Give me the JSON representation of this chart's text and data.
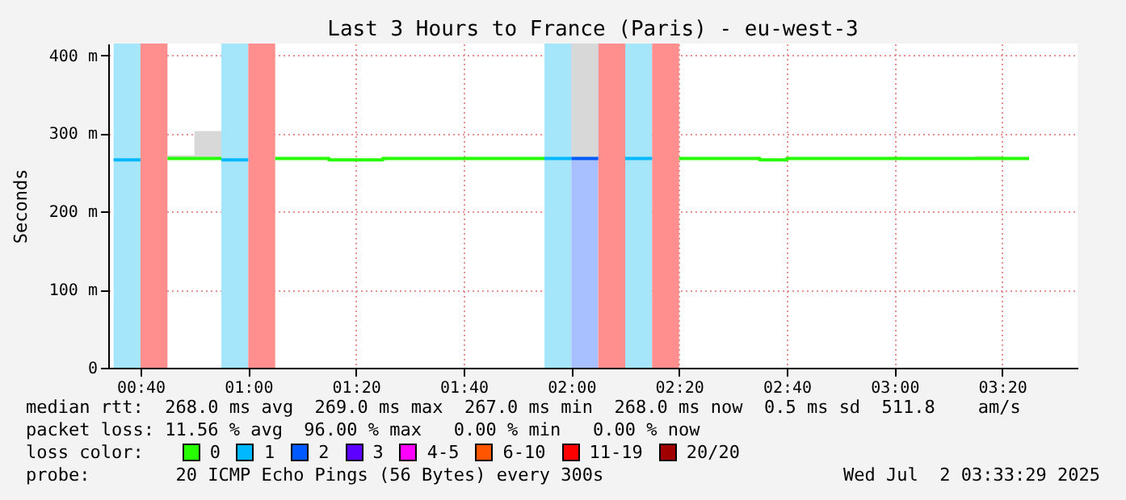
{
  "chart_data": {
    "type": "line",
    "title": "Last 3 Hours to France (Paris) - eu-west-3",
    "ylabel": "Seconds",
    "legend_title": "loss color:",
    "legend": "bottom",
    "xlim": [
      "2025-07-02T00:34",
      "2025-07-02T03:34"
    ],
    "xticks": [
      {
        "value": "2025-07-02T00:40",
        "label": "00:40"
      },
      {
        "value": "2025-07-02T01:00",
        "label": "01:00"
      },
      {
        "value": "2025-07-02T01:20",
        "label": "01:20"
      },
      {
        "value": "2025-07-02T01:40",
        "label": "01:40"
      },
      {
        "value": "2025-07-02T02:00",
        "label": "02:00"
      },
      {
        "value": "2025-07-02T02:20",
        "label": "02:20"
      },
      {
        "value": "2025-07-02T02:40",
        "label": "02:40"
      },
      {
        "value": "2025-07-02T03:00",
        "label": "03:00"
      },
      {
        "value": "2025-07-02T03:20",
        "label": "03:20"
      }
    ],
    "ylim": [
      0,
      415
    ],
    "yticks": [
      0,
      {
        "value": 100,
        "label": "100 m"
      },
      {
        "value": 200,
        "label": "200 m"
      },
      {
        "value": 300,
        "label": "300 m"
      },
      {
        "value": 400,
        "label": "400 m"
      }
    ],
    "grid": true,
    "series": [
      {
        "name": "0",
        "color": "#26ff00",
        "x": [
          "2025-07-02T00:45",
          "2025-07-02T00:50",
          "2025-07-02T00:50",
          "2025-07-02T00:55"
        ],
        "values": [
          268,
          268,
          268,
          268
        ],
        "lower": [
          268,
          268,
          268,
          268
        ],
        "upper": [
          272,
          272,
          303,
          303
        ]
      },
      {
        "name": "1",
        "color": "#00b8ff",
        "x": [
          "2025-07-02T00:35",
          "2025-07-02T00:40"
        ],
        "values": [
          266,
          266
        ]
      },
      {
        "name": "2",
        "color": "#0059ff",
        "x": [
          "2025-07-02T02:00",
          "2025-07-02T02:05"
        ],
        "values": [
          268,
          268
        ],
        "lower": [
          268,
          268
        ],
        "upper": [
          415,
          415
        ]
      },
      {
        "name": "3",
        "color": "#5e00ff"
      },
      {
        "name": "4-5",
        "color": "#ff00ff"
      },
      {
        "name": "6-10",
        "color": "#ff5500"
      },
      {
        "name": "11-19",
        "color": "#ff0000"
      },
      {
        "name": "20/20",
        "color": "#a10000"
      },
      {
        "color": "#26ff00",
        "x": [
          "2025-07-02T01:05",
          "2025-07-02T01:15",
          "2025-07-02T01:15",
          "2025-07-02T01:25",
          "2025-07-02T01:25",
          "2025-07-02T01:55"
        ],
        "values": [
          268,
          268,
          266,
          266,
          268,
          268
        ]
      },
      {
        "color": "#26ff00",
        "x": [
          "2025-07-02T02:20",
          "2025-07-02T02:35",
          "2025-07-02T02:35",
          "2025-07-02T02:40",
          "2025-07-02T02:40",
          "2025-07-02T03:15",
          "2025-07-02T03:15",
          "2025-07-02T03:20",
          "2025-07-02T03:20",
          "2025-07-02T03:25"
        ],
        "values": [
          268,
          268,
          266,
          266,
          268,
          268,
          268,
          268,
          268,
          268
        ],
        "lower": [
          null,
          null,
          null,
          null,
          null,
          null,
          268,
          268,
          null,
          null
        ],
        "upper": [
          null,
          null,
          null,
          null,
          null,
          null,
          271,
          271,
          null,
          null
        ]
      },
      {
        "color": "#00b8ff",
        "x": [
          "2025-07-02T00:55",
          "2025-07-02T01:00"
        ],
        "values": [
          266,
          266
        ]
      },
      {
        "color": "#00b8ff",
        "x": [
          "2025-07-02T01:55",
          "2025-07-02T02:00"
        ],
        "values": [
          268,
          268
        ]
      },
      {
        "color": "#00b8ff",
        "x": [
          "2025-07-02T02:10",
          "2025-07-02T02:15"
        ],
        "values": [
          268,
          268
        ]
      }
    ],
    "bands": [
      {
        "axis": "x",
        "from": "2025-07-02T00:35",
        "to": "2025-07-02T00:40",
        "color": "#a6e6fa"
      },
      {
        "axis": "x",
        "from": "2025-07-02T00:40",
        "to": "2025-07-02T00:45",
        "color": "#ff8f8f"
      },
      {
        "axis": "x",
        "from": "2025-07-02T00:55",
        "to": "2025-07-02T01:00",
        "color": "#a6e6fa"
      },
      {
        "axis": "x",
        "from": "2025-07-02T01:00",
        "to": "2025-07-02T01:05",
        "color": "#ff8f8f"
      },
      {
        "axis": "x",
        "from": "2025-07-02T01:55",
        "to": "2025-07-02T02:00",
        "color": "#a6e6fa"
      },
      {
        "axis": "x",
        "from": "2025-07-02T02:00",
        "to": "2025-07-02T02:05",
        "color": "#a8c0ff"
      },
      {
        "axis": "x",
        "from": "2025-07-02T02:05",
        "to": "2025-07-02T02:10",
        "color": "#ff8f8f"
      },
      {
        "axis": "x",
        "from": "2025-07-02T02:10",
        "to": "2025-07-02T02:15",
        "color": "#a6e6fa"
      },
      {
        "axis": "x",
        "from": "2025-07-02T02:15",
        "to": "2025-07-02T02:20",
        "color": "#ff8f8f"
      }
    ],
    "annotations": [
      "median rtt:  268.0 ms avg  269.0 ms max  267.0 ms min  268.0 ms now  0.5 ms sd  511.8    am/s",
      "packet loss: 11.56 % avg  96.00 % max   0.00 % min   0.00 % now",
      "probe:        20 ICMP Echo Pings (56 Bytes) every 300s",
      "Wed Jul  2 03:33:29 2025"
    ]
  }
}
